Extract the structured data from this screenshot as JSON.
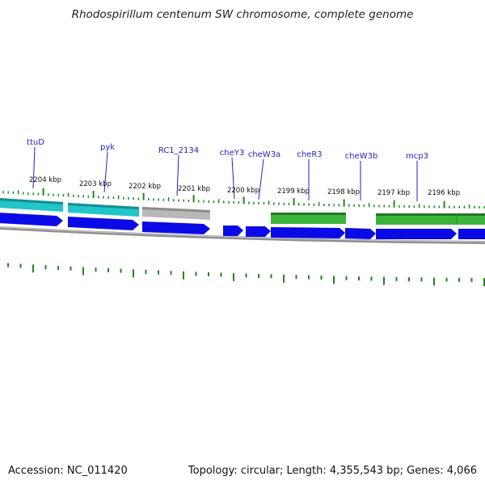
{
  "title": "Rhodospirillum centenum SW chromosome, complete genome",
  "footer": {
    "accession": "Accession: NC_011420",
    "summary": "Topology: circular; Length: 4,355,543 bp; Genes: 4,066"
  },
  "colors": {
    "forward_cds": "#0a0ae6",
    "feature_cyan": "#22c5c8",
    "feature_grey": "#b0b0b0",
    "feature_green": "#3cb43c",
    "tick_green": "#1a8a1a",
    "label_blue": "#1f1fc8",
    "backbone": "#808080"
  },
  "genes": [
    {
      "name": "ttuD"
    },
    {
      "name": "pyk"
    },
    {
      "name": "RC1_2134"
    },
    {
      "name": "cheY3"
    },
    {
      "name": "cheW3a"
    },
    {
      "name": "cheR3"
    },
    {
      "name": "cheW3b"
    },
    {
      "name": "mcp3"
    }
  ],
  "kbp_marks": [
    "2204 kbp",
    "2203 kbp",
    "2202 kbp",
    "2201 kbp",
    "2200 kbp",
    "2199 kbp",
    "2198 kbp",
    "2197 kbp",
    "2196 kbp"
  ]
}
